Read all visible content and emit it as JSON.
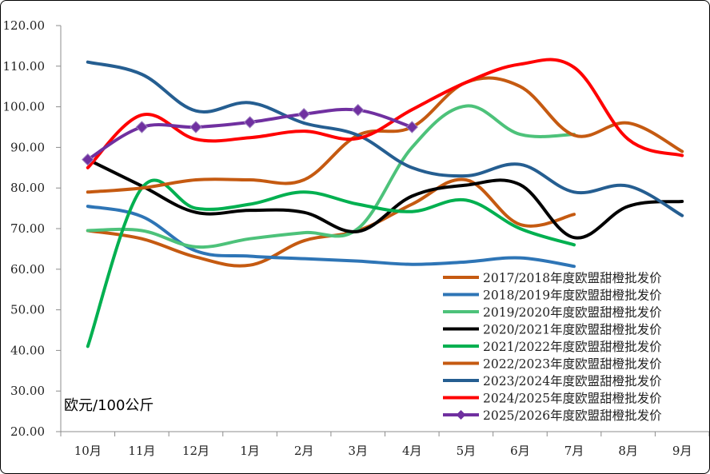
{
  "chart_data": {
    "type": "line",
    "title": "",
    "unit_label": "欧元/100公斤",
    "xlabel": "",
    "ylabel": "",
    "categories": [
      "10月",
      "11月",
      "12月",
      "1月",
      "2月",
      "3月",
      "4月",
      "5月",
      "6月",
      "7月",
      "8月",
      "9月"
    ],
    "ylim": [
      20,
      120
    ],
    "yticks": [
      "20.00",
      "30.00",
      "40.00",
      "50.00",
      "60.00",
      "70.00",
      "80.00",
      "90.00",
      "100.00",
      "110.00",
      "120.00"
    ],
    "legend_position": "bottom-right",
    "grid": false,
    "series": [
      {
        "name": "2017/2018年度欧盟甜橙批发价",
        "color": "#c55a11",
        "values": [
          69.5,
          67.5,
          63,
          61,
          67,
          69.5,
          76,
          82,
          71,
          73.5,
          null,
          null
        ]
      },
      {
        "name": "2018/2019年度欧盟甜橙批发价",
        "color": "#2e75b6",
        "values": [
          75.5,
          73,
          64.5,
          63.2,
          62.6,
          62,
          61.2,
          61.8,
          62.8,
          60.7,
          null,
          null
        ]
      },
      {
        "name": "2019/2020年度欧盟甜橙批发价",
        "color": "#4dc27a",
        "values": [
          69.5,
          69.5,
          65.5,
          67.5,
          69,
          70,
          90,
          100.2,
          93.2,
          93.2,
          null,
          null
        ]
      },
      {
        "name": "2020/2021年度欧盟甜橙批发价",
        "color": "#000000",
        "values": [
          87,
          80.5,
          74,
          74.5,
          74,
          69.3,
          78,
          80.7,
          80.8,
          67.8,
          75.5,
          76.7
        ]
      },
      {
        "name": "2021/2022年度欧盟甜橙批发价",
        "color": "#00b050",
        "values": [
          41,
          80,
          75,
          76,
          79,
          76,
          74.2,
          77,
          70,
          66,
          null,
          null
        ]
      },
      {
        "name": "2022/2023年度欧盟甜橙批发价",
        "color": "#c55a11",
        "values": [
          79,
          80,
          82,
          82,
          82,
          93,
          95,
          106,
          105,
          93,
          96,
          89
        ]
      },
      {
        "name": "2023/2024年度欧盟甜橙批发价",
        "color": "#255e91",
        "values": [
          111,
          108,
          99,
          101,
          96,
          93,
          85,
          83,
          85.8,
          79,
          80.5,
          73.2
        ]
      },
      {
        "name": "2024/2025年度欧盟甜橙批发价",
        "color": "#ff0000",
        "values": [
          85,
          98,
          92,
          92.4,
          94,
          92.2,
          99.3,
          106,
          110.5,
          109.7,
          92,
          88
        ]
      },
      {
        "name": "2025/2026年度欧盟甜橙批发价",
        "color": "#7030a0",
        "marker": "diamond",
        "values": [
          87,
          95,
          95,
          96.2,
          98.2,
          99.2,
          95,
          null,
          null,
          null,
          null,
          null
        ]
      }
    ]
  }
}
